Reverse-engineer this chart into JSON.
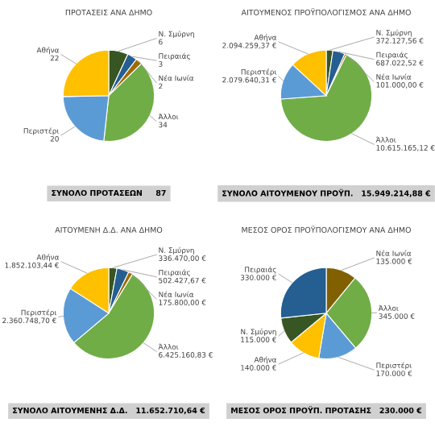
{
  "chart_data": [
    {
      "type": "pie",
      "title": "ΠΡΟΤΑΣΕΙΣ ΑΝΑ ΔΗΜΟ",
      "categories": [
        "Ν. Σμύρνη",
        "Πειραιάς",
        "Νέα Ιωνία",
        "Άλλοι",
        "Περιστέρι",
        "Αθήνα"
      ],
      "values": [
        6,
        3,
        2,
        34,
        20,
        22
      ],
      "value_labels": [
        "6",
        "3",
        "2",
        "34",
        "20",
        "22"
      ],
      "colors": [
        "#375623",
        "#255e91",
        "#9e6b00",
        "#70ad47",
        "#5b9bd5",
        "#ffc000"
      ],
      "annotations": [
        "ΣΥΝΟΛΟ ΠΡΟΤΑΣΕΩΝ     87"
      ]
    },
    {
      "type": "pie",
      "title": "ΑΙΤΟΥΜΕΝΟΣ ΠΡΟΫΠΟΛΟΓΙΣΜΟΣ ΑΝΑ ΔΗΜΟ",
      "categories": [
        "Ν. Σμύρνη",
        "Πειραιάς",
        "Νέα Ιωνία",
        "Άλλοι",
        "Περιστέρι",
        "Αθήνα"
      ],
      "values": [
        372127.56,
        687022.52,
        101000.0,
        10615165.12,
        2079640.31,
        2094259.37
      ],
      "value_labels": [
        "372.127,56 €",
        "687.022,52 €",
        "101.000,00 €",
        "10.615.165,12 €",
        "2.079.640,31 €",
        "2.094.259,37 €"
      ],
      "colors": [
        "#375623",
        "#255e91",
        "#9e6b00",
        "#70ad47",
        "#5b9bd5",
        "#ffc000"
      ],
      "annotations": [
        "ΣΥΝΟΛΟ ΑΙΤΟΥΜΕΝΟΥ ΠΡΟΫΠ.   15.949.214,88 €"
      ]
    },
    {
      "type": "pie",
      "title": "ΑΙΤΟΥΜΕΝΗ Δ.Δ. ΑΝΑ ΔΗΜΟ",
      "categories": [
        "Ν. Σμύρνη",
        "Πειραιάς",
        "Νέα Ιωνία",
        "Άλλοι",
        "Περιστέρι",
        "Αθήνα"
      ],
      "values": [
        336470.0,
        502427.67,
        175800.0,
        6425160.83,
        2360748.7,
        1852103.44
      ],
      "value_labels": [
        "336.470,00 €",
        "502.427,67 €",
        "175.800,00 €",
        "6.425.160,83 €",
        "2.360.748,70 €",
        "1.852.103,44 €"
      ],
      "colors": [
        "#375623",
        "#255e91",
        "#9e6b00",
        "#70ad47",
        "#5b9bd5",
        "#ffc000"
      ],
      "annotations": [
        "ΣΥΝΟΛΟ ΑΙΤΟΥΜΕΝΗΣ Δ.Δ.   11.652.710,64 €"
      ]
    },
    {
      "type": "pie",
      "title": "ΜΕΣΟΣ ΟΡΟΣ ΠΡΟΫΠΟΛΟΓΙΣΜΟΥ ΑΝΑ ΔΗΜΟ",
      "categories": [
        "Νέα Ιωνία",
        "Άλλοι",
        "Περιστέρι",
        "Αθήνα",
        "Ν. Σμύρνη",
        "Πειραιάς"
      ],
      "values": [
        135000,
        345000,
        170000,
        140000,
        115000,
        330000
      ],
      "value_labels": [
        "135.000 €",
        "345.000 €",
        "170.000 €",
        "140.000 €",
        "115.000 €",
        "330.000 €"
      ],
      "colors": [
        "#806000",
        "#70ad47",
        "#5b9bd5",
        "#ffc000",
        "#375623",
        "#255e91"
      ],
      "annotations": [
        "ΜΕΣΟΣ ΟΡΟΣ ΠΡΟΫΠ. ΠΡΟΤΑΣΗΣ   230.000 €"
      ]
    }
  ]
}
